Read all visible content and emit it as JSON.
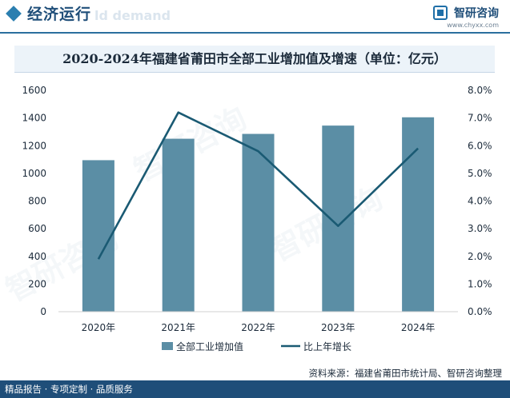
{
  "header": {
    "section_title": "经济运行",
    "ghost_text": "ld demand",
    "brand_name": "智研咨询",
    "brand_url": "www.chyxx.com"
  },
  "watermark_text": "智研咨询",
  "colors": {
    "bar": "#5b8ea5",
    "line": "#1a5a73",
    "accent": "#1f4e79"
  },
  "chart_data": {
    "type": "bar",
    "title": "2020-2024年福建省莆田市全部工业增加值及增速（单位：亿元）",
    "categories": [
      "2020年",
      "2021年",
      "2022年",
      "2023年",
      "2024年"
    ],
    "series": [
      {
        "name": "全部工业增加值",
        "type": "bar",
        "axis": "left",
        "values": [
          1095,
          1250,
          1285,
          1345,
          1405
        ]
      },
      {
        "name": "比上年增长",
        "type": "line",
        "axis": "right",
        "values": [
          1.9,
          7.2,
          5.8,
          3.1,
          5.9
        ]
      }
    ],
    "y_left": {
      "min": 0,
      "max": 1600,
      "ticks": [
        "0",
        "200",
        "400",
        "600",
        "800",
        "1000",
        "1200",
        "1400",
        "1600"
      ]
    },
    "y_right": {
      "min": 0,
      "max": 8,
      "ticks": [
        "0.0%",
        "1.0%",
        "2.0%",
        "3.0%",
        "4.0%",
        "5.0%",
        "6.0%",
        "7.0%",
        "8.0%"
      ]
    },
    "legend_position": "bottom",
    "grid": false
  },
  "footer": {
    "source": "资料来源：福建省莆田市统计局、智研咨询整理",
    "slogan": "精品报告 · 专项定制 · 品质服务"
  }
}
